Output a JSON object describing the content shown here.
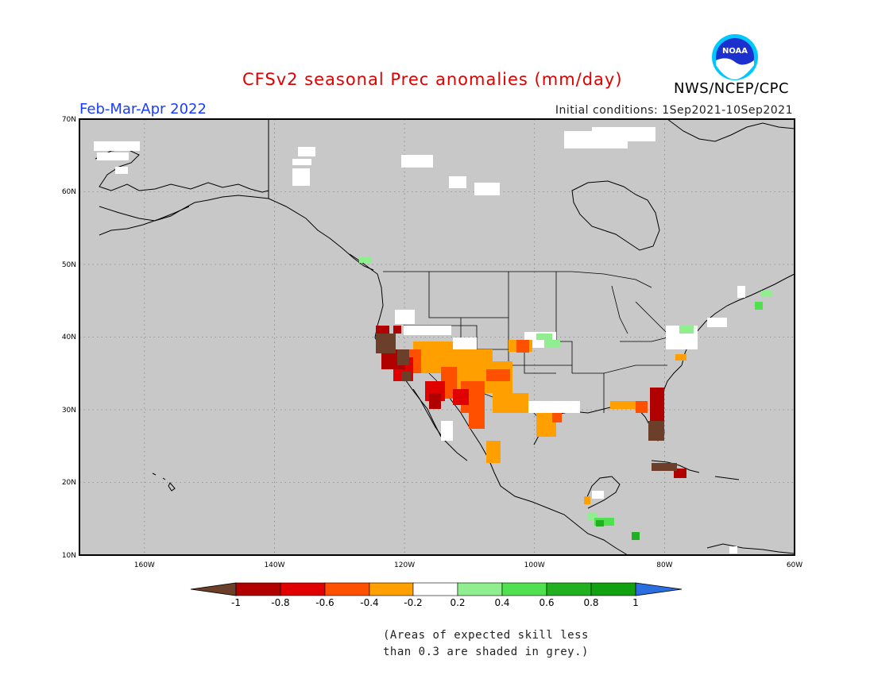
{
  "header": {
    "title": "CFSv2 seasonal Prec anomalies (mm/day)",
    "season": "Feb-Mar-Apr 2022",
    "initial_conditions": "Initial conditions: 1Sep2021-10Sep2021",
    "agency": "NWS/NCEP/CPC",
    "logo_text": "NOAA"
  },
  "map": {
    "lat_labels": [
      "70N",
      "60N",
      "50N",
      "40N",
      "30N",
      "20N",
      "10N"
    ],
    "lon_labels": [
      "160W",
      "140W",
      "120W",
      "100W",
      "80W",
      "60W"
    ],
    "lat_range": [
      10,
      70
    ],
    "lon_range": [
      -170,
      -60
    ],
    "background_color": "#c8c8c8"
  },
  "colorbar": {
    "tick_labels": [
      "-1",
      "-0.8",
      "-0.6",
      "-0.4",
      "-0.2",
      "0.2",
      "0.4",
      "0.6",
      "0.8",
      "1"
    ],
    "colors": [
      "#6b3f2a",
      "#b00000",
      "#e00000",
      "#ff5000",
      "#ffa000",
      "#ffffff",
      "#90ee90",
      "#50e050",
      "#20b020",
      "#10a010",
      "#2a6ee0"
    ]
  },
  "footnote": {
    "line1": "(Areas of expected skill less",
    "line2": "than 0.3 are shaded in grey.)"
  }
}
